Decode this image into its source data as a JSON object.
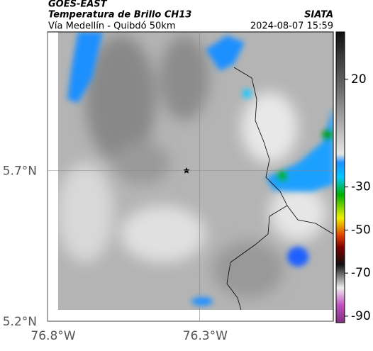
{
  "header": {
    "source": "GOES-EAST",
    "product": "Temperatura de Brillo CH13",
    "org": "SIATA",
    "route": "Vía Medellín - Quibdó 50km",
    "timestamp": "2024-08-07 15:59"
  },
  "map": {
    "lonlim": [
      -76.8,
      -75.86
    ],
    "latlim": [
      5.2,
      6.16
    ],
    "xticks": [
      {
        "value": -76.8,
        "label": "76.8°W"
      },
      {
        "value": -76.3,
        "label": "76.3°W"
      }
    ],
    "yticks": [
      {
        "value": 5.7,
        "label": "5.7°N"
      },
      {
        "value": 5.2,
        "label": "5.2°N"
      }
    ]
  },
  "colorbar": {
    "lim": [
      42,
      -93
    ],
    "ticks": [
      20,
      -30,
      -50,
      -70,
      -90
    ]
  }
}
